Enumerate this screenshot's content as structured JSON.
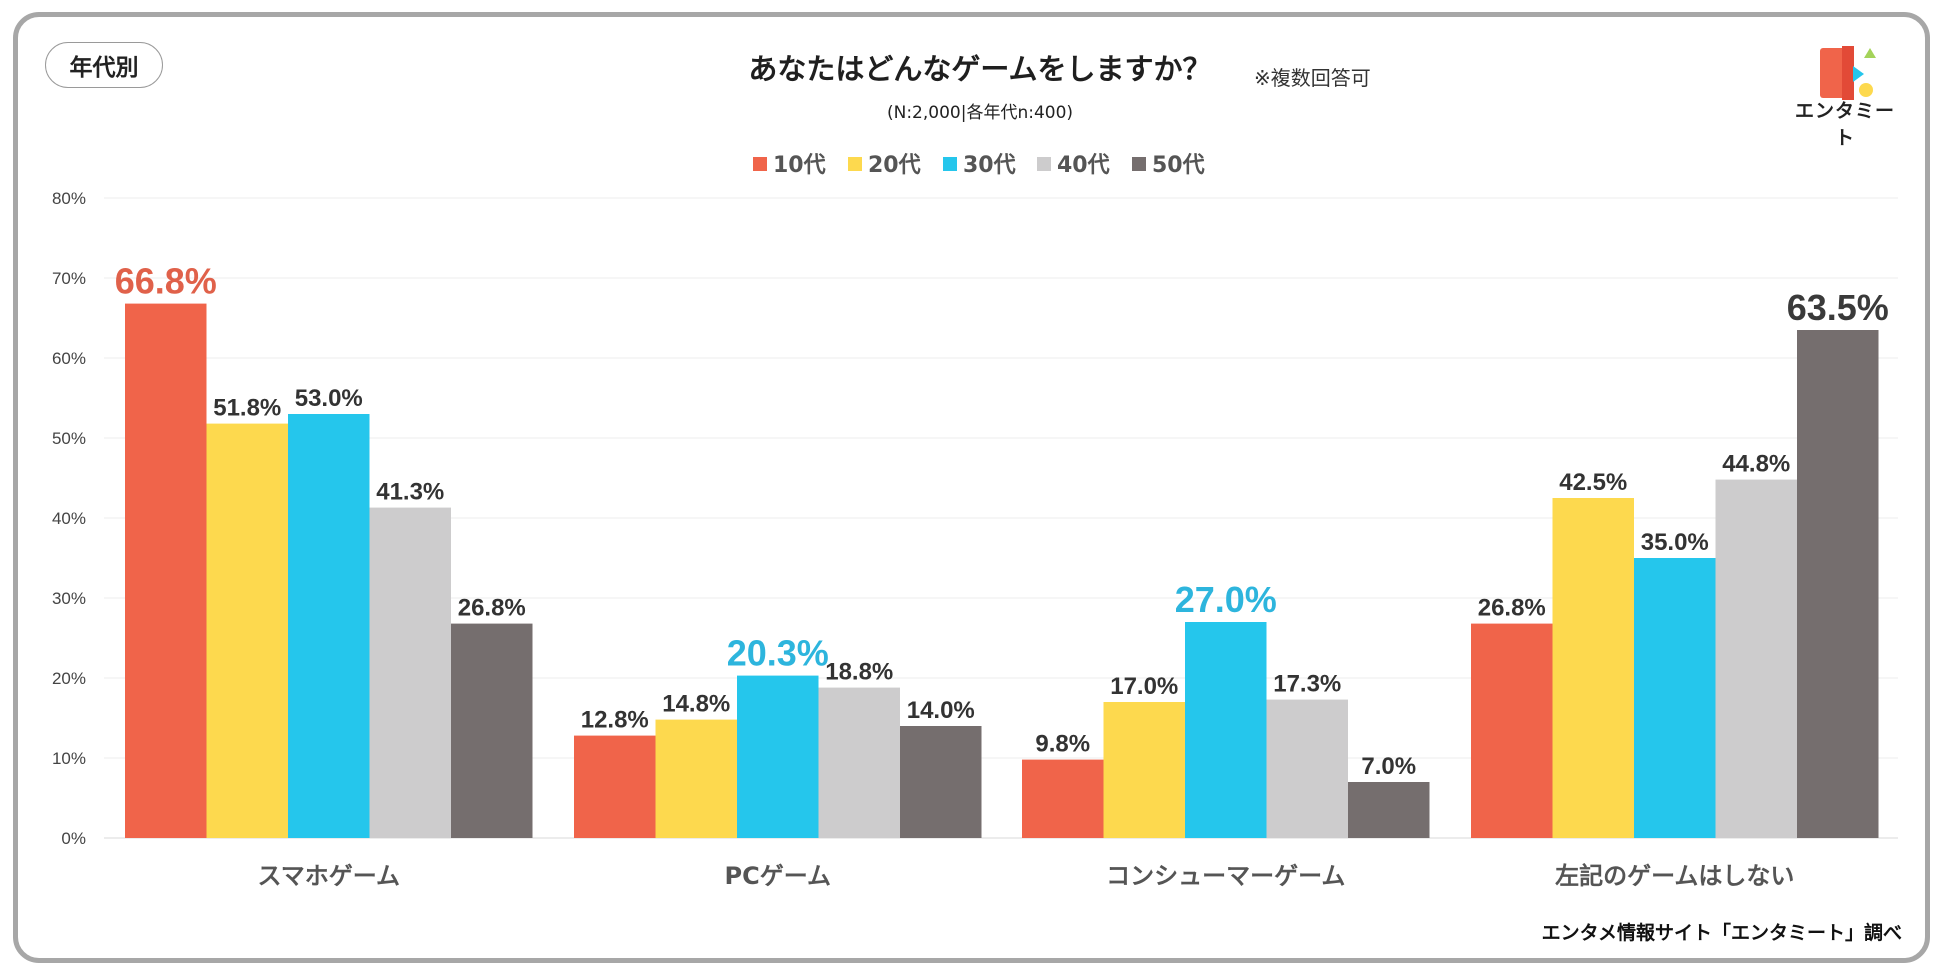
{
  "header": {
    "badge_label": "年代別",
    "title": "あなたはどんなゲームをしますか？",
    "note": "※複数回答可",
    "subtitle": "(N:2,000|各年代n:400)"
  },
  "logo": {
    "text": "エンタミート"
  },
  "footer": {
    "source": "エンタメ情報サイト「エンタミート」調べ"
  },
  "chart_data": {
    "type": "bar",
    "title": "あなたはどんなゲームをしますか？",
    "categories": [
      "スマホゲーム",
      "PCゲーム",
      "コンシューマーゲーム",
      "左記のゲームはしない"
    ],
    "series": [
      {
        "name": "10代",
        "color": "#f0644a",
        "values": [
          66.8,
          12.8,
          9.8,
          26.8
        ],
        "labels": [
          "66.8%",
          "12.8%",
          "9.8%",
          "26.8%"
        ]
      },
      {
        "name": "20代",
        "color": "#fdd94e",
        "values": [
          51.8,
          14.8,
          17.0,
          42.5
        ],
        "labels": [
          "51.8%",
          "14.8%",
          "17.0%",
          "42.5%"
        ]
      },
      {
        "name": "30代",
        "color": "#25c6ec",
        "values": [
          53.0,
          20.3,
          27.0,
          35.0
        ],
        "labels": [
          "53.0%",
          "20.3%",
          "27.0%",
          "35.0%"
        ]
      },
      {
        "name": "40代",
        "color": "#cdcccd",
        "values": [
          41.3,
          18.8,
          17.3,
          44.8
        ],
        "labels": [
          "41.3%",
          "18.8%",
          "17.3%",
          "44.8%"
        ]
      },
      {
        "name": "50代",
        "color": "#756e6e",
        "values": [
          26.8,
          14.0,
          7.0,
          63.5
        ],
        "labels": [
          "26.8%",
          "14.0%",
          "7.0%",
          "63.5%"
        ]
      }
    ],
    "highlights": [
      {
        "series": 0,
        "category": 0,
        "color": "#e0614a"
      },
      {
        "series": 2,
        "category": 1,
        "color": "#2db5dd"
      },
      {
        "series": 2,
        "category": 2,
        "color": "#2db5dd"
      },
      {
        "series": 4,
        "category": 3,
        "color": "#3a3a3a"
      }
    ],
    "ylim": [
      0,
      80
    ],
    "yticks": [
      0,
      10,
      20,
      30,
      40,
      50,
      60,
      70,
      80
    ],
    "ytick_labels": [
      "0%",
      "10%",
      "20%",
      "30%",
      "40%",
      "50%",
      "60%",
      "70%",
      "80%"
    ],
    "grid": true,
    "legend_position": "top-center",
    "xlabel": "",
    "ylabel": ""
  }
}
